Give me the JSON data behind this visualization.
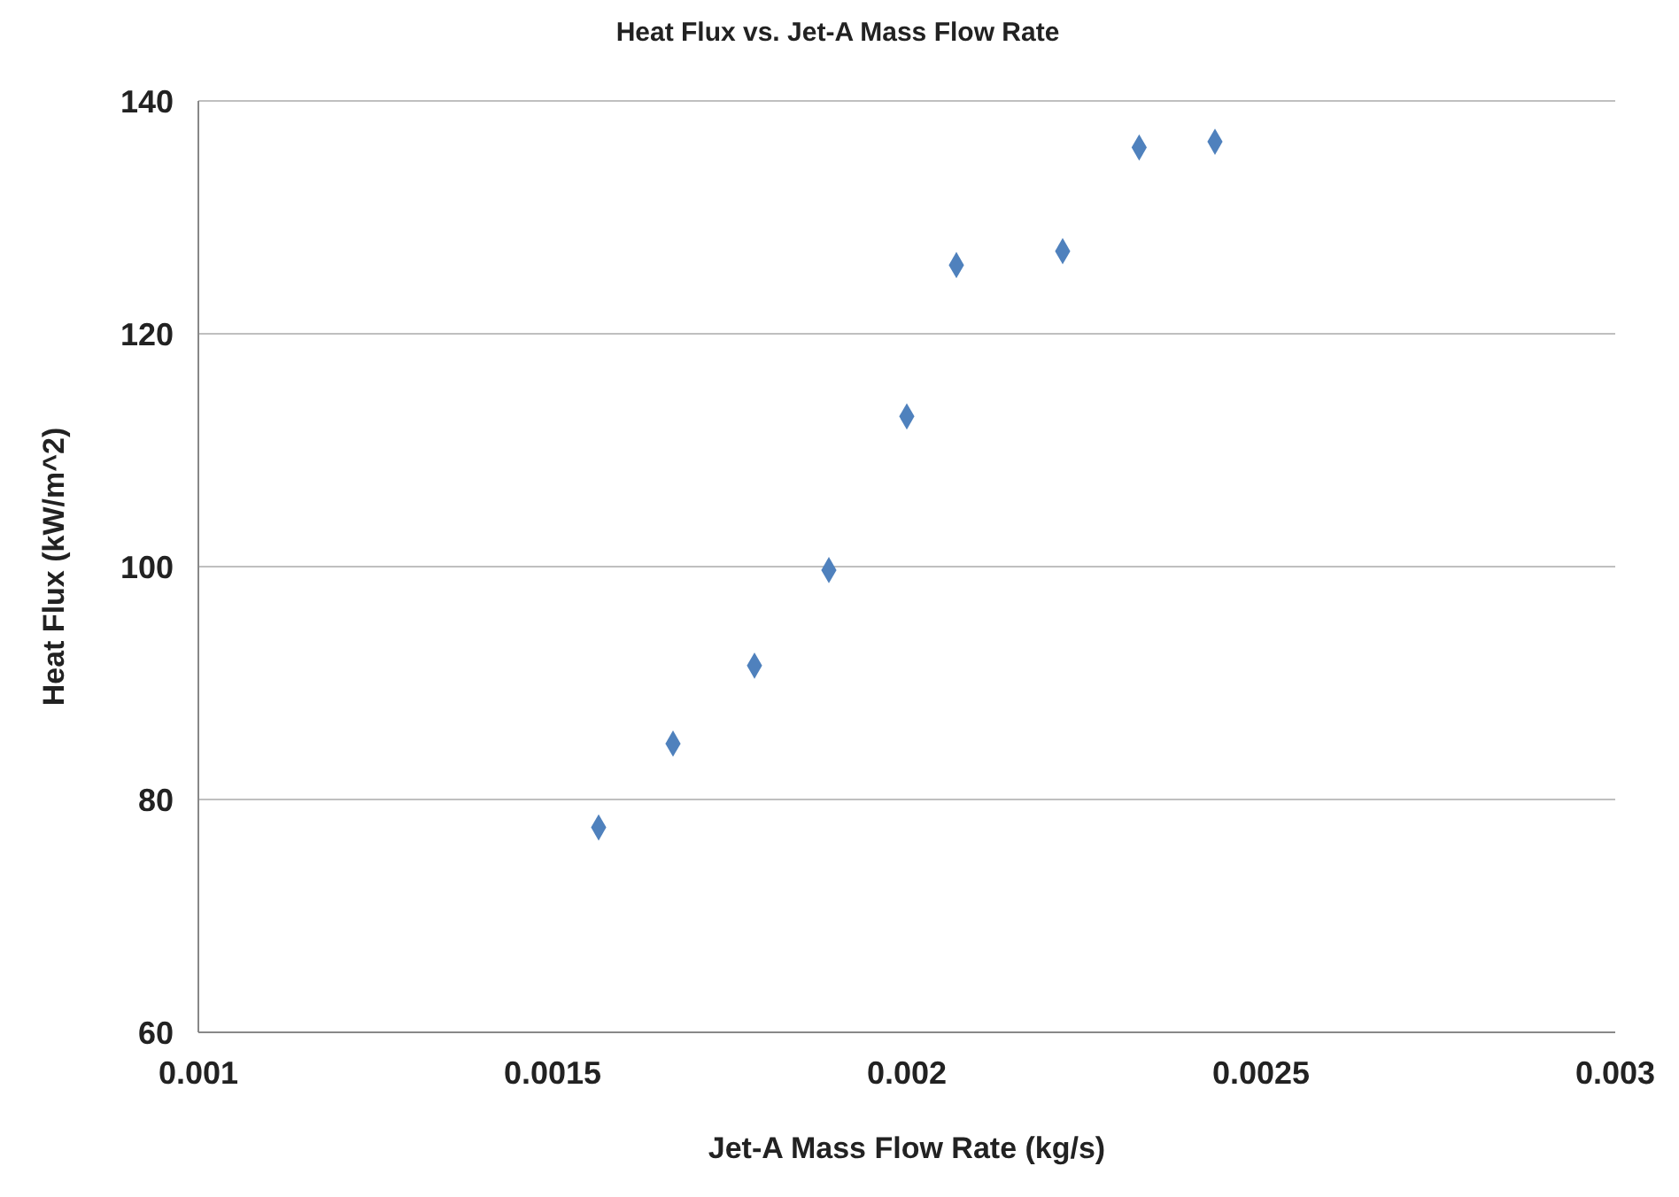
{
  "chart_data": {
    "type": "scatter",
    "title": "Heat Flux vs. Jet-A Mass Flow Rate",
    "xlabel": "Jet-A Mass Flow Rate (kg/s)",
    "ylabel": "Heat Flux (kW/m^2)",
    "x": [
      0.001565,
      0.00167,
      0.001785,
      0.00189,
      0.002,
      0.00207,
      0.00222,
      0.002328,
      0.002435
    ],
    "values": [
      77.6,
      84.8,
      91.5,
      99.7,
      112.9,
      125.9,
      127.1,
      136.0,
      136.5
    ],
    "color": "#4f81bd",
    "marker": "diamond",
    "xlim": [
      0.001,
      0.003
    ],
    "xticks": [
      0.001,
      0.0015,
      0.002,
      0.0025,
      0.003
    ],
    "ylim": [
      60,
      140
    ],
    "yticks": [
      60,
      80,
      100,
      120,
      140
    ],
    "grid": "y",
    "legend": false
  }
}
